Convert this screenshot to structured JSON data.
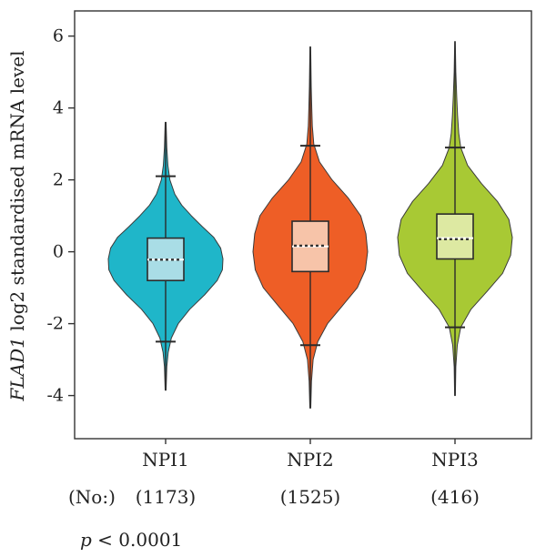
{
  "chart_data": {
    "type": "violin",
    "ylabel_gene": "FLAD1",
    "ylabel_rest": " log2 standardised mRNA level",
    "ylim": [
      -5.2,
      6.7
    ],
    "yticks": [
      -4,
      -2,
      0,
      2,
      4,
      6
    ],
    "categories": [
      "NPI1",
      "NPI2",
      "NPI3"
    ],
    "counts_label": "(No:)",
    "counts": [
      "(1173)",
      "(1525)",
      "(416)"
    ],
    "colors": {
      "NPI1": {
        "violin": "#1FB6C9",
        "box": "#A9DDE6"
      },
      "NPI2": {
        "violin": "#EE5E26",
        "box": "#F7C4A9"
      },
      "NPI3": {
        "violin": "#A8C934",
        "box": "#DDE9A2"
      }
    },
    "series": [
      {
        "name": "NPI1",
        "min": -3.85,
        "max": 3.6,
        "whisker_low": -2.5,
        "whisker_high": 2.1,
        "q1": -0.8,
        "median": -0.22,
        "mean": -0.22,
        "q3": 0.38,
        "density": [
          [
            -3.85,
            0.008
          ],
          [
            -3.2,
            0.02
          ],
          [
            -2.8,
            0.045
          ],
          [
            -2.4,
            0.1
          ],
          [
            -2.0,
            0.22
          ],
          [
            -1.6,
            0.42
          ],
          [
            -1.2,
            0.68
          ],
          [
            -0.8,
            0.9
          ],
          [
            -0.5,
            0.99
          ],
          [
            -0.2,
            1.0
          ],
          [
            0.1,
            0.96
          ],
          [
            0.4,
            0.84
          ],
          [
            0.7,
            0.64
          ],
          [
            1.0,
            0.45
          ],
          [
            1.3,
            0.28
          ],
          [
            1.6,
            0.16
          ],
          [
            2.0,
            0.075
          ],
          [
            2.4,
            0.04
          ],
          [
            2.9,
            0.02
          ],
          [
            3.6,
            0.008
          ]
        ]
      },
      {
        "name": "NPI2",
        "min": -4.35,
        "max": 5.7,
        "whisker_low": -2.6,
        "whisker_high": 2.95,
        "q1": -0.55,
        "median": 0.15,
        "mean": 0.17,
        "q3": 0.85,
        "density": [
          [
            -4.35,
            0.008
          ],
          [
            -3.6,
            0.02
          ],
          [
            -3.0,
            0.05
          ],
          [
            -2.5,
            0.13
          ],
          [
            -2.0,
            0.3
          ],
          [
            -1.5,
            0.56
          ],
          [
            -1.0,
            0.82
          ],
          [
            -0.5,
            0.96
          ],
          [
            0.0,
            1.0
          ],
          [
            0.5,
            0.97
          ],
          [
            1.0,
            0.88
          ],
          [
            1.5,
            0.66
          ],
          [
            2.0,
            0.38
          ],
          [
            2.5,
            0.16
          ],
          [
            3.0,
            0.06
          ],
          [
            3.5,
            0.035
          ],
          [
            4.0,
            0.025
          ],
          [
            4.6,
            0.016
          ],
          [
            5.7,
            0.006
          ]
        ]
      },
      {
        "name": "NPI3",
        "min": -4.0,
        "max": 5.85,
        "whisker_low": -2.1,
        "whisker_high": 2.9,
        "q1": -0.2,
        "median": 0.38,
        "mean": 0.35,
        "q3": 1.05,
        "density": [
          [
            -4.0,
            0.006
          ],
          [
            -3.2,
            0.015
          ],
          [
            -2.6,
            0.04
          ],
          [
            -2.1,
            0.1
          ],
          [
            -1.6,
            0.28
          ],
          [
            -1.1,
            0.56
          ],
          [
            -0.6,
            0.83
          ],
          [
            -0.1,
            0.97
          ],
          [
            0.4,
            1.0
          ],
          [
            0.9,
            0.94
          ],
          [
            1.4,
            0.74
          ],
          [
            1.9,
            0.46
          ],
          [
            2.4,
            0.22
          ],
          [
            2.9,
            0.1
          ],
          [
            3.3,
            0.065
          ],
          [
            3.8,
            0.045
          ],
          [
            4.3,
            0.03
          ],
          [
            5.0,
            0.014
          ],
          [
            5.85,
            0.005
          ]
        ]
      }
    ],
    "annotation_italic": "p",
    "annotation_rest": " < 0.0001"
  }
}
